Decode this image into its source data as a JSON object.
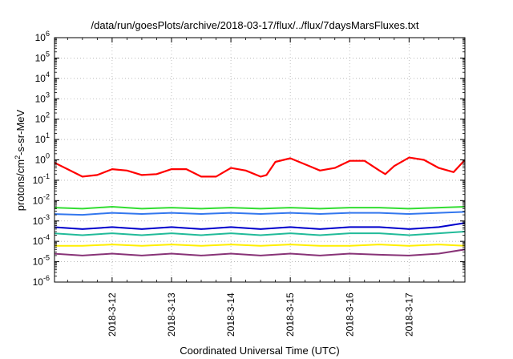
{
  "chart_data": {
    "type": "line",
    "title": "/data/run/goesPlots/archive/2018-03-17/flux/../flux/7daysMarsFluxes.txt",
    "xlabel": "Coordinated Universal Time (UTC)",
    "ylabel_main": "protons/cm",
    "ylabel_sup": "2",
    "ylabel_rest": "-s-sr-MeV",
    "y_scale": "log",
    "y_ticks": [
      {
        "base": "10",
        "exp": "-6"
      },
      {
        "base": "10",
        "exp": "-5"
      },
      {
        "base": "10",
        "exp": "-4"
      },
      {
        "base": "10",
        "exp": "-3"
      },
      {
        "base": "10",
        "exp": "-2"
      },
      {
        "base": "10",
        "exp": "-1"
      },
      {
        "base": "10",
        "exp": "0"
      },
      {
        "base": "10",
        "exp": "1"
      },
      {
        "base": "10",
        "exp": "2"
      },
      {
        "base": "10",
        "exp": "3"
      },
      {
        "base": "10",
        "exp": "4"
      },
      {
        "base": "10",
        "exp": "5"
      },
      {
        "base": "10",
        "exp": "6"
      }
    ],
    "ylim_exponent": [
      -6,
      6
    ],
    "x_tick_labels": [
      "2018-3-12",
      "2018-3-13",
      "2018-3-14",
      "2018-3-15",
      "2018-3-16",
      "2018-3-17"
    ],
    "xlim_days": [
      11.03,
      17.94
    ],
    "grid": true,
    "series": [
      {
        "color": "#ff0000",
        "x": [
          11.0,
          11.25,
          11.5,
          11.75,
          12.0,
          12.25,
          12.5,
          12.75,
          13.0,
          13.25,
          13.5,
          13.75,
          14.0,
          14.25,
          14.5,
          14.6,
          14.75,
          15.0,
          15.25,
          15.5,
          15.75,
          16.0,
          16.25,
          16.5,
          16.6,
          16.75,
          17.0,
          17.25,
          17.5,
          17.75,
          17.94
        ],
        "y": [
          0.8,
          0.35,
          0.15,
          0.18,
          0.35,
          0.3,
          0.18,
          0.2,
          0.35,
          0.35,
          0.15,
          0.15,
          0.4,
          0.3,
          0.15,
          0.18,
          0.8,
          1.2,
          0.6,
          0.3,
          0.4,
          0.9,
          0.9,
          0.3,
          0.2,
          0.5,
          1.3,
          1.0,
          0.4,
          0.25,
          1.0
        ]
      },
      {
        "color": "#33dd33",
        "x": [
          11.0,
          11.5,
          12.0,
          12.5,
          13.0,
          13.5,
          14.0,
          14.5,
          15.0,
          15.5,
          16.0,
          16.5,
          17.0,
          17.5,
          17.94
        ],
        "y": [
          0.0045,
          0.004,
          0.005,
          0.004,
          0.0045,
          0.004,
          0.0045,
          0.004,
          0.0045,
          0.004,
          0.0045,
          0.0045,
          0.004,
          0.0045,
          0.005
        ]
      },
      {
        "color": "#3377ee",
        "x": [
          11.0,
          11.5,
          12.0,
          12.5,
          13.0,
          13.5,
          14.0,
          14.5,
          15.0,
          15.5,
          16.0,
          16.5,
          17.0,
          17.5,
          17.94
        ],
        "y": [
          0.0022,
          0.002,
          0.0025,
          0.0022,
          0.0025,
          0.0022,
          0.0025,
          0.0022,
          0.0025,
          0.0022,
          0.0025,
          0.0025,
          0.0022,
          0.0025,
          0.0028
        ]
      },
      {
        "color": "#0000cc",
        "x": [
          11.0,
          11.5,
          12.0,
          12.5,
          13.0,
          13.5,
          14.0,
          14.5,
          15.0,
          15.5,
          16.0,
          16.5,
          17.0,
          17.5,
          17.94
        ],
        "y": [
          0.0005,
          0.0004,
          0.0005,
          0.0004,
          0.0005,
          0.0004,
          0.0005,
          0.0004,
          0.0005,
          0.0004,
          0.0005,
          0.0005,
          0.0004,
          0.0005,
          0.0008
        ]
      },
      {
        "color": "#22bb99",
        "x": [
          11.0,
          11.5,
          12.0,
          12.5,
          13.0,
          13.5,
          14.0,
          14.5,
          15.0,
          15.5,
          16.0,
          16.5,
          17.0,
          17.5,
          17.94
        ],
        "y": [
          0.00025,
          0.0002,
          0.00025,
          0.0002,
          0.00025,
          0.0002,
          0.00025,
          0.0002,
          0.00025,
          0.0002,
          0.00025,
          0.00025,
          0.0002,
          0.00025,
          0.0003
        ]
      },
      {
        "color": "#ffee00",
        "x": [
          11.0,
          11.5,
          12.0,
          12.5,
          13.0,
          13.5,
          14.0,
          14.5,
          15.0,
          15.5,
          16.0,
          16.5,
          17.0,
          17.5,
          17.94
        ],
        "y": [
          6e-05,
          6e-05,
          7e-05,
          6e-05,
          7e-05,
          6e-05,
          7e-05,
          6e-05,
          7e-05,
          6e-05,
          6e-05,
          7e-05,
          6e-05,
          7e-05,
          6e-05
        ]
      },
      {
        "color": "#883377",
        "x": [
          11.0,
          11.5,
          12.0,
          12.5,
          13.0,
          13.5,
          14.0,
          14.5,
          15.0,
          15.5,
          16.0,
          16.5,
          17.0,
          17.5,
          17.94
        ],
        "y": [
          2.5e-05,
          2e-05,
          2.5e-05,
          2e-05,
          2.5e-05,
          2e-05,
          2.5e-05,
          2e-05,
          2.5e-05,
          2e-05,
          2.5e-05,
          2.2e-05,
          2e-05,
          2.5e-05,
          4e-05
        ]
      }
    ]
  }
}
